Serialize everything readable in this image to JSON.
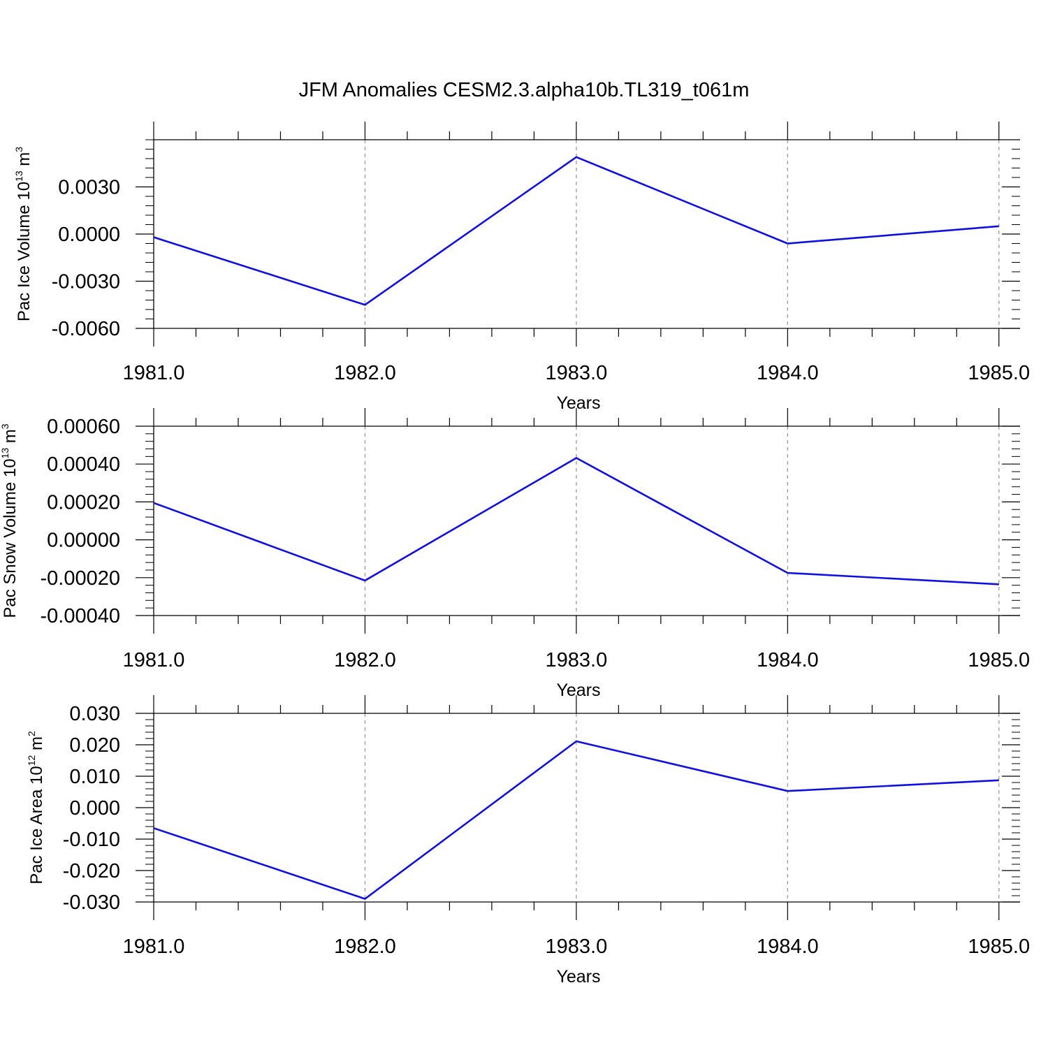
{
  "figure": {
    "title": "JFM Anomalies CESM2.3.alpha10b.TL319_t061m",
    "line_color": "#1010e0",
    "grid_color": "#9a9a9a"
  },
  "chart_data": [
    {
      "type": "line",
      "title": "",
      "xlabel": "Years",
      "ylabel_main": "Pac Ice Volume 10",
      "ylabel_exp": "13",
      "ylabel_unit": " m",
      "ylabel_unit_exp": "3",
      "x": [
        1981.0,
        1982.0,
        1983.0,
        1984.0,
        1985.0
      ],
      "xlim": [
        1981.0,
        1985.1
      ],
      "xticks": [
        1981.0,
        1982.0,
        1983.0,
        1984.0,
        1985.0
      ],
      "xticklabels": [
        "1981.0",
        "1982.0",
        "1983.0",
        "1984.0",
        "1985.0"
      ],
      "ylim": [
        -0.006,
        0.006
      ],
      "yticks": [
        -0.006,
        -0.003,
        0.0,
        0.003
      ],
      "yticklabels": [
        "-0.0060",
        "-0.0030",
        "0.0000",
        "0.0030"
      ],
      "yminor_step": 0.0006,
      "grid": "vertical dashed at major x ticks",
      "series": [
        {
          "values": [
            -0.0002,
            -0.0045,
            0.0049,
            -0.0006,
            0.0005
          ]
        }
      ]
    },
    {
      "type": "line",
      "title": "",
      "xlabel": "Years",
      "ylabel_main": "Pac Snow Volume 10",
      "ylabel_exp": "13",
      "ylabel_unit": " m",
      "ylabel_unit_exp": "3",
      "x": [
        1981.0,
        1982.0,
        1983.0,
        1984.0,
        1985.0
      ],
      "xlim": [
        1981.0,
        1985.1
      ],
      "xticks": [
        1981.0,
        1982.0,
        1983.0,
        1984.0,
        1985.0
      ],
      "xticklabels": [
        "1981.0",
        "1982.0",
        "1983.0",
        "1984.0",
        "1985.0"
      ],
      "ylim": [
        -0.0004,
        0.0006
      ],
      "yticks": [
        -0.0004,
        -0.0002,
        0.0,
        0.0002,
        0.0004,
        0.0006
      ],
      "yticklabels": [
        "-0.00040",
        "-0.00020",
        "0.00000",
        "0.00020",
        "0.00040",
        "0.00060"
      ],
      "yminor_step": 4e-05,
      "grid": "vertical dashed at major x ticks",
      "series": [
        {
          "values": [
            0.000195,
            -0.000215,
            0.000432,
            -0.000175,
            -0.000235
          ]
        }
      ]
    },
    {
      "type": "line",
      "title": "",
      "xlabel": "Years",
      "ylabel_main": "Pac Ice Area 10",
      "ylabel_exp": "12",
      "ylabel_unit": " m",
      "ylabel_unit_exp": "2",
      "x": [
        1981.0,
        1982.0,
        1983.0,
        1984.0,
        1985.0
      ],
      "xlim": [
        1981.0,
        1985.1
      ],
      "xticks": [
        1981.0,
        1982.0,
        1983.0,
        1984.0,
        1985.0
      ],
      "xticklabels": [
        "1981.0",
        "1982.0",
        "1983.0",
        "1984.0",
        "1985.0"
      ],
      "ylim": [
        -0.03,
        0.03
      ],
      "yticks": [
        -0.03,
        -0.02,
        -0.01,
        0.0,
        0.01,
        0.02,
        0.03
      ],
      "yticklabels": [
        "-0.030",
        "-0.020",
        "-0.010",
        "0.000",
        "0.010",
        "0.020",
        "0.030"
      ],
      "yminor_step": 0.002,
      "grid": "vertical dashed at major x ticks",
      "series": [
        {
          "values": [
            -0.0065,
            -0.029,
            0.0211,
            0.0053,
            0.0087
          ]
        }
      ]
    }
  ]
}
